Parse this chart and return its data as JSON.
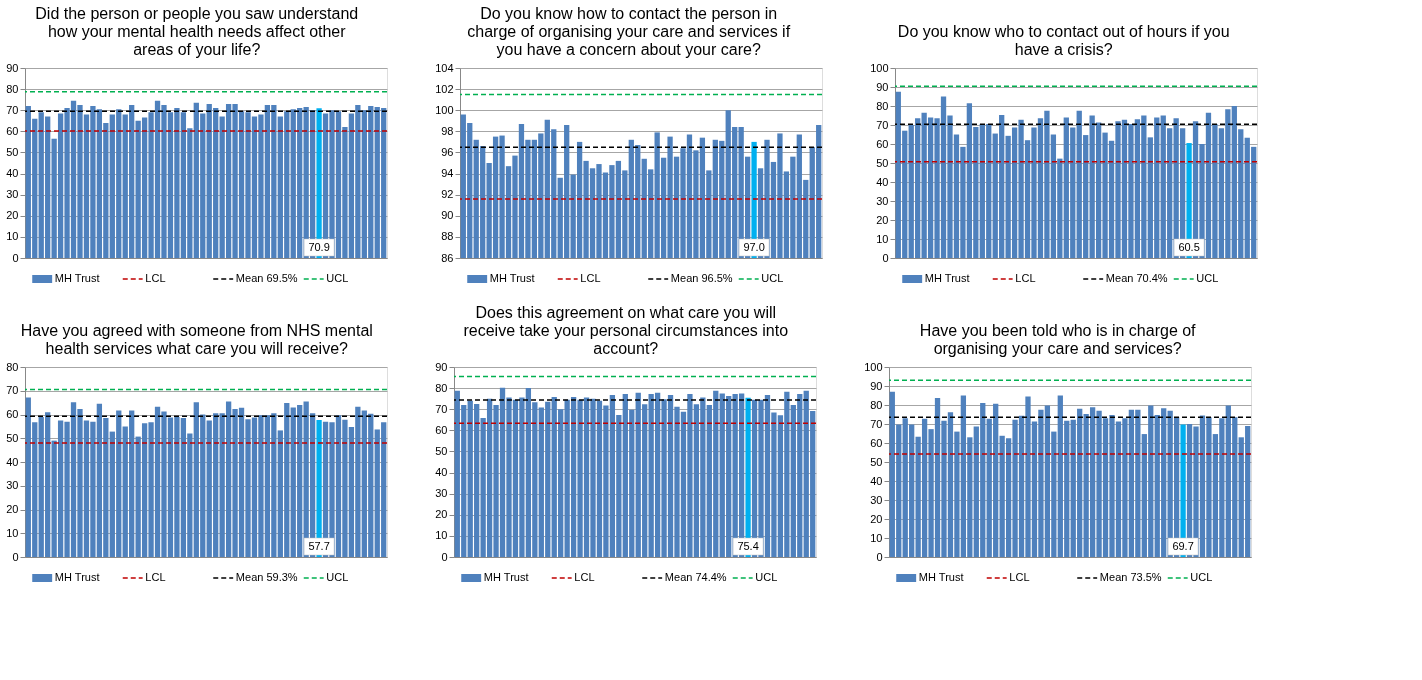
{
  "chart_data": [
    {
      "type": "bar",
      "title": "Did the person or people you saw understand how your mental health needs affect other areas of your life?",
      "categories": [
        null,
        null,
        null,
        null,
        null,
        null,
        null,
        null,
        null,
        null,
        null,
        null,
        null,
        null,
        null,
        null,
        null,
        null,
        null,
        null,
        null,
        null,
        null,
        null,
        null,
        null,
        null,
        null,
        null,
        null,
        null,
        null,
        null,
        null,
        null,
        null,
        null,
        null,
        null,
        null,
        null,
        null,
        null,
        null,
        null,
        null,
        null,
        null,
        null,
        null,
        null,
        null,
        null,
        null,
        null,
        null
      ],
      "tick_labels": "y",
      "ylim": [
        0,
        90
      ],
      "yticks": [
        0,
        10,
        20,
        30,
        40,
        50,
        60,
        70,
        80,
        90
      ],
      "grid": "y",
      "legend": "bottom",
      "series": [
        {
          "name": "MH Trust",
          "color": "#4f81bd",
          "values": [
            72,
            66,
            69,
            67,
            56.5,
            68.5,
            71,
            74.5,
            72.5,
            68,
            72,
            70.5,
            64,
            68,
            70.5,
            68,
            72.5,
            65,
            66.5,
            69,
            74.5,
            72.5,
            69,
            71,
            69,
            61.5,
            73.5,
            68.5,
            73,
            71,
            67,
            73,
            73,
            69.5,
            69,
            67,
            68,
            72.5,
            72.5,
            67,
            69.5,
            70.5,
            71,
            71.5,
            70,
            70.9,
            68.5,
            70,
            69.5,
            62,
            68.5,
            72.5,
            70,
            72,
            71.5,
            71
          ],
          "colors": [
            "#4f81bd",
            "#4f81bd",
            "#4f81bd",
            "#4f81bd",
            "#4f81bd",
            "#4f81bd",
            "#4f81bd",
            "#4f81bd",
            "#4f81bd",
            "#4f81bd",
            "#4f81bd",
            "#4f81bd",
            "#4f81bd",
            "#4f81bd",
            "#4f81bd",
            "#4f81bd",
            "#4f81bd",
            "#4f81bd",
            "#4f81bd",
            "#4f81bd",
            "#4f81bd",
            "#4f81bd",
            "#4f81bd",
            "#4f81bd",
            "#4f81bd",
            "#4f81bd",
            "#4f81bd",
            "#4f81bd",
            "#4f81bd",
            "#4f81bd",
            "#4f81bd",
            "#4f81bd",
            "#4f81bd",
            "#4f81bd",
            "#4f81bd",
            "#4f81bd",
            "#4f81bd",
            "#4f81bd",
            "#4f81bd",
            "#4f81bd",
            "#4f81bd",
            "#4f81bd",
            "#4f81bd",
            "#4f81bd",
            "#4f81bd",
            "#00b0f0",
            "#4f81bd",
            "#4f81bd",
            "#4f81bd",
            "#4f81bd",
            "#4f81bd",
            "#4f81bd",
            "#4f81bd",
            "#4f81bd",
            "#4f81bd",
            "#4f81bd"
          ],
          "value_labels": [
            null,
            null,
            null,
            null,
            null,
            null,
            null,
            null,
            null,
            null,
            null,
            null,
            null,
            null,
            null,
            null,
            null,
            null,
            null,
            null,
            null,
            null,
            null,
            null,
            null,
            null,
            null,
            null,
            null,
            null,
            null,
            null,
            null,
            null,
            null,
            null,
            null,
            null,
            null,
            null,
            null,
            null,
            null,
            null,
            null,
            "70.9",
            null,
            null,
            null,
            null,
            null,
            null,
            null,
            null,
            null,
            null
          ]
        }
      ],
      "ref_lines": [
        {
          "axis": "y",
          "value": 60.2,
          "label": "LCL",
          "color": "#c00000",
          "line_style": "dashed"
        },
        {
          "axis": "y",
          "value": 69.5,
          "label": "Mean 69.5%",
          "color": "#000000",
          "line_style": "dashed"
        },
        {
          "axis": "y",
          "value": 78.7,
          "label": "UCL",
          "color": "#00b050",
          "line_style": "dashed"
        }
      ]
    },
    {
      "type": "bar",
      "title": "Do you know how to contact the person in charge of organising your care and services if you have a concern about your care?",
      "categories": [
        null,
        null,
        null,
        null,
        null,
        null,
        null,
        null,
        null,
        null,
        null,
        null,
        null,
        null,
        null,
        null,
        null,
        null,
        null,
        null,
        null,
        null,
        null,
        null,
        null,
        null,
        null,
        null,
        null,
        null,
        null,
        null,
        null,
        null,
        null,
        null,
        null,
        null,
        null,
        null,
        null,
        null,
        null,
        null,
        null,
        null,
        null,
        null,
        null,
        null,
        null,
        null,
        null,
        null,
        null,
        null
      ],
      "tick_labels": "y",
      "ylim": [
        86,
        104
      ],
      "yticks": [
        86,
        88,
        90,
        92,
        94,
        96,
        98,
        100,
        102,
        104
      ],
      "grid": "y",
      "legend": "bottom",
      "series": [
        {
          "name": "MH Trust",
          "color": "#4f81bd",
          "values": [
            99.6,
            98.8,
            97.2,
            96.6,
            95,
            97.5,
            97.6,
            94.7,
            95.7,
            98.7,
            97.2,
            97.2,
            97.8,
            99.1,
            98.2,
            93.6,
            98.6,
            93.9,
            97,
            95.2,
            94.5,
            94.9,
            94.1,
            94.8,
            95.2,
            94.3,
            97.2,
            96.7,
            95.4,
            94.4,
            97.9,
            95.5,
            97.5,
            95.6,
            96.4,
            97.7,
            96.2,
            97.4,
            94.3,
            97.2,
            97.1,
            100,
            98.4,
            98.4,
            95.6,
            97.0,
            94.5,
            97.2,
            95.1,
            97.8,
            94.2,
            95.6,
            97.7,
            93.4,
            96.5,
            98.6
          ],
          "colors": [
            "#4f81bd",
            "#4f81bd",
            "#4f81bd",
            "#4f81bd",
            "#4f81bd",
            "#4f81bd",
            "#4f81bd",
            "#4f81bd",
            "#4f81bd",
            "#4f81bd",
            "#4f81bd",
            "#4f81bd",
            "#4f81bd",
            "#4f81bd",
            "#4f81bd",
            "#4f81bd",
            "#4f81bd",
            "#4f81bd",
            "#4f81bd",
            "#4f81bd",
            "#4f81bd",
            "#4f81bd",
            "#4f81bd",
            "#4f81bd",
            "#4f81bd",
            "#4f81bd",
            "#4f81bd",
            "#4f81bd",
            "#4f81bd",
            "#4f81bd",
            "#4f81bd",
            "#4f81bd",
            "#4f81bd",
            "#4f81bd",
            "#4f81bd",
            "#4f81bd",
            "#4f81bd",
            "#4f81bd",
            "#4f81bd",
            "#4f81bd",
            "#4f81bd",
            "#4f81bd",
            "#4f81bd",
            "#4f81bd",
            "#4f81bd",
            "#00b0f0",
            "#4f81bd",
            "#4f81bd",
            "#4f81bd",
            "#4f81bd",
            "#4f81bd",
            "#4f81bd",
            "#4f81bd",
            "#4f81bd",
            "#4f81bd",
            "#4f81bd"
          ],
          "value_labels": [
            null,
            null,
            null,
            null,
            null,
            null,
            null,
            null,
            null,
            null,
            null,
            null,
            null,
            null,
            null,
            null,
            null,
            null,
            null,
            null,
            null,
            null,
            null,
            null,
            null,
            null,
            null,
            null,
            null,
            null,
            null,
            null,
            null,
            null,
            null,
            null,
            null,
            null,
            null,
            null,
            null,
            null,
            null,
            null,
            null,
            "97.0",
            null,
            null,
            null,
            null,
            null,
            null,
            null,
            null,
            null,
            null
          ]
        }
      ],
      "ref_lines": [
        {
          "axis": "y",
          "value": 91.6,
          "label": "LCL",
          "color": "#c00000",
          "line_style": "dashed"
        },
        {
          "axis": "y",
          "value": 96.5,
          "label": "Mean 96.5%",
          "color": "#000000",
          "line_style": "dashed"
        },
        {
          "axis": "y",
          "value": 101.5,
          "label": "UCL",
          "color": "#00b050",
          "line_style": "dashed"
        }
      ]
    },
    {
      "type": "bar",
      "title": "Do you know who to contact out of hours if you have a crisis?",
      "categories": [
        null,
        null,
        null,
        null,
        null,
        null,
        null,
        null,
        null,
        null,
        null,
        null,
        null,
        null,
        null,
        null,
        null,
        null,
        null,
        null,
        null,
        null,
        null,
        null,
        null,
        null,
        null,
        null,
        null,
        null,
        null,
        null,
        null,
        null,
        null,
        null,
        null,
        null,
        null,
        null,
        null,
        null,
        null,
        null,
        null,
        null,
        null,
        null,
        null,
        null,
        null,
        null,
        null,
        null,
        null,
        null
      ],
      "tick_labels": "y",
      "ylim": [
        0,
        100
      ],
      "yticks": [
        0,
        10,
        20,
        30,
        40,
        50,
        60,
        70,
        80,
        90,
        100
      ],
      "grid": "y",
      "legend": "bottom",
      "series": [
        {
          "name": "MH Trust",
          "color": "#4f81bd",
          "values": [
            87.5,
            67,
            70,
            73.5,
            76.5,
            74,
            73.5,
            85,
            75,
            65,
            58.5,
            81.5,
            69,
            70.5,
            70.5,
            65.5,
            75.3,
            64.3,
            68.7,
            72.7,
            62,
            68.7,
            73.5,
            77.5,
            65,
            52.3,
            74,
            68.7,
            77.5,
            64.7,
            75,
            71.3,
            66,
            61.7,
            72,
            72.7,
            70.5,
            73,
            75,
            63.5,
            74,
            75,
            68.3,
            73.5,
            68.3,
            60.5,
            72,
            60,
            76.5,
            70.5,
            68.3,
            78.3,
            80,
            67.7,
            63.3,
            58.5
          ],
          "colors": [
            "#4f81bd",
            "#4f81bd",
            "#4f81bd",
            "#4f81bd",
            "#4f81bd",
            "#4f81bd",
            "#4f81bd",
            "#4f81bd",
            "#4f81bd",
            "#4f81bd",
            "#4f81bd",
            "#4f81bd",
            "#4f81bd",
            "#4f81bd",
            "#4f81bd",
            "#4f81bd",
            "#4f81bd",
            "#4f81bd",
            "#4f81bd",
            "#4f81bd",
            "#4f81bd",
            "#4f81bd",
            "#4f81bd",
            "#4f81bd",
            "#4f81bd",
            "#4f81bd",
            "#4f81bd",
            "#4f81bd",
            "#4f81bd",
            "#4f81bd",
            "#4f81bd",
            "#4f81bd",
            "#4f81bd",
            "#4f81bd",
            "#4f81bd",
            "#4f81bd",
            "#4f81bd",
            "#4f81bd",
            "#4f81bd",
            "#4f81bd",
            "#4f81bd",
            "#4f81bd",
            "#4f81bd",
            "#4f81bd",
            "#4f81bd",
            "#00b0f0",
            "#4f81bd",
            "#4f81bd",
            "#4f81bd",
            "#4f81bd",
            "#4f81bd",
            "#4f81bd",
            "#4f81bd",
            "#4f81bd",
            "#4f81bd",
            "#4f81bd"
          ],
          "value_labels": [
            null,
            null,
            null,
            null,
            null,
            null,
            null,
            null,
            null,
            null,
            null,
            null,
            null,
            null,
            null,
            null,
            null,
            null,
            null,
            null,
            null,
            null,
            null,
            null,
            null,
            null,
            null,
            null,
            null,
            null,
            null,
            null,
            null,
            null,
            null,
            null,
            null,
            null,
            null,
            null,
            null,
            null,
            null,
            null,
            null,
            "60.5",
            null,
            null,
            null,
            null,
            null,
            null,
            null,
            null,
            null,
            null
          ]
        }
      ],
      "ref_lines": [
        {
          "axis": "y",
          "value": 50.6,
          "label": "LCL",
          "color": "#c00000",
          "line_style": "dashed"
        },
        {
          "axis": "y",
          "value": 70.4,
          "label": "Mean 70.4%",
          "color": "#000000",
          "line_style": "dashed"
        },
        {
          "axis": "y",
          "value": 90.4,
          "label": "UCL",
          "color": "#00b050",
          "line_style": "dashed"
        }
      ]
    },
    {
      "type": "bar",
      "title": "Have you agreed with someone from NHS mental health services what care you will receive?",
      "categories": [
        null,
        null,
        null,
        null,
        null,
        null,
        null,
        null,
        null,
        null,
        null,
        null,
        null,
        null,
        null,
        null,
        null,
        null,
        null,
        null,
        null,
        null,
        null,
        null,
        null,
        null,
        null,
        null,
        null,
        null,
        null,
        null,
        null,
        null,
        null,
        null,
        null,
        null,
        null,
        null,
        null,
        null,
        null,
        null,
        null,
        null,
        null,
        null,
        null,
        null,
        null,
        null,
        null,
        null,
        null,
        null
      ],
      "tick_labels": "y",
      "ylim": [
        0,
        80
      ],
      "yticks": [
        0,
        10,
        20,
        30,
        40,
        50,
        60,
        70,
        80
      ],
      "grid": "y",
      "legend": "bottom",
      "series": [
        {
          "name": "MH Trust",
          "color": "#4f81bd",
          "values": [
            67.2,
            56.7,
            59,
            61,
            49,
            57.5,
            57,
            65.2,
            62.3,
            57.5,
            57,
            64.5,
            58.5,
            52.8,
            61.7,
            55,
            61.7,
            50.7,
            56.3,
            56.7,
            63.3,
            61.3,
            58.7,
            59,
            58.5,
            52,
            65.2,
            60,
            57.5,
            60.5,
            60.5,
            65.5,
            62.3,
            62.8,
            58,
            58.7,
            59.7,
            59.7,
            60.5,
            53.3,
            64.8,
            63,
            64,
            65.5,
            60.5,
            57.7,
            57,
            56.7,
            59.7,
            57.8,
            54.7,
            63.3,
            61.7,
            60.3,
            53.7,
            56.7
          ],
          "colors": [
            "#4f81bd",
            "#4f81bd",
            "#4f81bd",
            "#4f81bd",
            "#4f81bd",
            "#4f81bd",
            "#4f81bd",
            "#4f81bd",
            "#4f81bd",
            "#4f81bd",
            "#4f81bd",
            "#4f81bd",
            "#4f81bd",
            "#4f81bd",
            "#4f81bd",
            "#4f81bd",
            "#4f81bd",
            "#4f81bd",
            "#4f81bd",
            "#4f81bd",
            "#4f81bd",
            "#4f81bd",
            "#4f81bd",
            "#4f81bd",
            "#4f81bd",
            "#4f81bd",
            "#4f81bd",
            "#4f81bd",
            "#4f81bd",
            "#4f81bd",
            "#4f81bd",
            "#4f81bd",
            "#4f81bd",
            "#4f81bd",
            "#4f81bd",
            "#4f81bd",
            "#4f81bd",
            "#4f81bd",
            "#4f81bd",
            "#4f81bd",
            "#4f81bd",
            "#4f81bd",
            "#4f81bd",
            "#4f81bd",
            "#4f81bd",
            "#00b0f0",
            "#4f81bd",
            "#4f81bd",
            "#4f81bd",
            "#4f81bd",
            "#4f81bd",
            "#4f81bd",
            "#4f81bd",
            "#4f81bd",
            "#4f81bd",
            "#4f81bd"
          ],
          "value_labels": [
            null,
            null,
            null,
            null,
            null,
            null,
            null,
            null,
            null,
            null,
            null,
            null,
            null,
            null,
            null,
            null,
            null,
            null,
            null,
            null,
            null,
            null,
            null,
            null,
            null,
            null,
            null,
            null,
            null,
            null,
            null,
            null,
            null,
            null,
            null,
            null,
            null,
            null,
            null,
            null,
            null,
            null,
            null,
            null,
            null,
            "57.7",
            null,
            null,
            null,
            null,
            null,
            null,
            null,
            null,
            null,
            null
          ]
        }
      ],
      "ref_lines": [
        {
          "axis": "y",
          "value": 48,
          "label": "LCL",
          "color": "#c00000",
          "line_style": "dashed"
        },
        {
          "axis": "y",
          "value": 59.3,
          "label": "Mean 59.3%",
          "color": "#000000",
          "line_style": "dashed"
        },
        {
          "axis": "y",
          "value": 70.5,
          "label": "UCL",
          "color": "#00b050",
          "line_style": "dashed"
        }
      ]
    },
    {
      "type": "bar",
      "title": "Does this agreement on what care you will receive take your personal circumstances into account?",
      "categories": [
        null,
        null,
        null,
        null,
        null,
        null,
        null,
        null,
        null,
        null,
        null,
        null,
        null,
        null,
        null,
        null,
        null,
        null,
        null,
        null,
        null,
        null,
        null,
        null,
        null,
        null,
        null,
        null,
        null,
        null,
        null,
        null,
        null,
        null,
        null,
        null,
        null,
        null,
        null,
        null,
        null,
        null,
        null,
        null,
        null,
        null,
        null,
        null,
        null,
        null,
        null,
        null,
        null,
        null,
        null,
        null
      ],
      "tick_labels": "y",
      "ylim": [
        0,
        90
      ],
      "yticks": [
        0,
        10,
        20,
        30,
        40,
        50,
        60,
        70,
        80,
        90
      ],
      "grid": "y",
      "legend": "bottom",
      "series": [
        {
          "name": "MH Trust",
          "color": "#4f81bd",
          "values": [
            78.7,
            72,
            74,
            72.5,
            65.8,
            75,
            72,
            80.2,
            75.5,
            74.5,
            75.5,
            80,
            73.3,
            70.8,
            73.5,
            75.8,
            70,
            74.5,
            75.8,
            74.5,
            75.5,
            75,
            74,
            71.8,
            76.7,
            67.3,
            77.2,
            69.8,
            77.8,
            72.3,
            77.2,
            77.8,
            74.7,
            76.7,
            71.2,
            68.8,
            77.2,
            72.3,
            75.5,
            72,
            78.7,
            77.5,
            76.3,
            77.2,
            77.5,
            75.4,
            74.5,
            74.5,
            76.7,
            68.5,
            67.2,
            78.3,
            72,
            77.2,
            78.7,
            69.2
          ],
          "colors": [
            "#4f81bd",
            "#4f81bd",
            "#4f81bd",
            "#4f81bd",
            "#4f81bd",
            "#4f81bd",
            "#4f81bd",
            "#4f81bd",
            "#4f81bd",
            "#4f81bd",
            "#4f81bd",
            "#4f81bd",
            "#4f81bd",
            "#4f81bd",
            "#4f81bd",
            "#4f81bd",
            "#4f81bd",
            "#4f81bd",
            "#4f81bd",
            "#4f81bd",
            "#4f81bd",
            "#4f81bd",
            "#4f81bd",
            "#4f81bd",
            "#4f81bd",
            "#4f81bd",
            "#4f81bd",
            "#4f81bd",
            "#4f81bd",
            "#4f81bd",
            "#4f81bd",
            "#4f81bd",
            "#4f81bd",
            "#4f81bd",
            "#4f81bd",
            "#4f81bd",
            "#4f81bd",
            "#4f81bd",
            "#4f81bd",
            "#4f81bd",
            "#4f81bd",
            "#4f81bd",
            "#4f81bd",
            "#4f81bd",
            "#4f81bd",
            "#00b0f0",
            "#4f81bd",
            "#4f81bd",
            "#4f81bd",
            "#4f81bd",
            "#4f81bd",
            "#4f81bd",
            "#4f81bd",
            "#4f81bd",
            "#4f81bd",
            "#4f81bd"
          ],
          "value_labels": [
            null,
            null,
            null,
            null,
            null,
            null,
            null,
            null,
            null,
            null,
            null,
            null,
            null,
            null,
            null,
            null,
            null,
            null,
            null,
            null,
            null,
            null,
            null,
            null,
            null,
            null,
            null,
            null,
            null,
            null,
            null,
            null,
            null,
            null,
            null,
            null,
            null,
            null,
            null,
            null,
            null,
            null,
            null,
            null,
            null,
            "75.4",
            null,
            null,
            null,
            null,
            null,
            null,
            null,
            null,
            null,
            null
          ]
        }
      ],
      "ref_lines": [
        {
          "axis": "y",
          "value": 63.3,
          "label": "LCL",
          "color": "#c00000",
          "line_style": "dashed"
        },
        {
          "axis": "y",
          "value": 74.4,
          "label": "Mean 74.4%",
          "color": "#000000",
          "line_style": "dashed"
        },
        {
          "axis": "y",
          "value": 85.5,
          "label": "UCL",
          "color": "#00b050",
          "line_style": "dashed"
        }
      ]
    },
    {
      "type": "bar",
      "title": "Have you been told who is in charge of organising your care and services?",
      "categories": [
        null,
        null,
        null,
        null,
        null,
        null,
        null,
        null,
        null,
        null,
        null,
        null,
        null,
        null,
        null,
        null,
        null,
        null,
        null,
        null,
        null,
        null,
        null,
        null,
        null,
        null,
        null,
        null,
        null,
        null,
        null,
        null,
        null,
        null,
        null,
        null,
        null,
        null,
        null,
        null,
        null,
        null,
        null,
        null,
        null,
        null,
        null,
        null,
        null,
        null,
        null,
        null,
        null,
        null,
        null,
        null
      ],
      "tick_labels": "y",
      "ylim": [
        0,
        100
      ],
      "yticks": [
        0,
        10,
        20,
        30,
        40,
        50,
        60,
        70,
        80,
        90,
        100
      ],
      "grid": "y",
      "legend": "bottom",
      "series": [
        {
          "name": "MH Trust",
          "color": "#4f81bd",
          "values": [
            87,
            69.7,
            73,
            69.7,
            63.3,
            72.7,
            67.3,
            83.7,
            71.7,
            76.2,
            66,
            85,
            63,
            68.7,
            81,
            72.7,
            80.7,
            63.8,
            62.5,
            72.3,
            74.3,
            84.5,
            71.3,
            77.5,
            79.7,
            66,
            85,
            71.7,
            72.3,
            78,
            75.3,
            78.8,
            77,
            73,
            74.7,
            71.3,
            73,
            77.5,
            77.5,
            64.7,
            79.7,
            74.8,
            78.3,
            77,
            73.5,
            69.7,
            70,
            68.7,
            74.5,
            73.5,
            64.7,
            73,
            79.8,
            73.5,
            63,
            69
          ],
          "colors": [
            "#4f81bd",
            "#4f81bd",
            "#4f81bd",
            "#4f81bd",
            "#4f81bd",
            "#4f81bd",
            "#4f81bd",
            "#4f81bd",
            "#4f81bd",
            "#4f81bd",
            "#4f81bd",
            "#4f81bd",
            "#4f81bd",
            "#4f81bd",
            "#4f81bd",
            "#4f81bd",
            "#4f81bd",
            "#4f81bd",
            "#4f81bd",
            "#4f81bd",
            "#4f81bd",
            "#4f81bd",
            "#4f81bd",
            "#4f81bd",
            "#4f81bd",
            "#4f81bd",
            "#4f81bd",
            "#4f81bd",
            "#4f81bd",
            "#4f81bd",
            "#4f81bd",
            "#4f81bd",
            "#4f81bd",
            "#4f81bd",
            "#4f81bd",
            "#4f81bd",
            "#4f81bd",
            "#4f81bd",
            "#4f81bd",
            "#4f81bd",
            "#4f81bd",
            "#4f81bd",
            "#4f81bd",
            "#4f81bd",
            "#4f81bd",
            "#00b0f0",
            "#4f81bd",
            "#4f81bd",
            "#4f81bd",
            "#4f81bd",
            "#4f81bd",
            "#4f81bd",
            "#4f81bd",
            "#4f81bd",
            "#4f81bd",
            "#4f81bd"
          ],
          "value_labels": [
            null,
            null,
            null,
            null,
            null,
            null,
            null,
            null,
            null,
            null,
            null,
            null,
            null,
            null,
            null,
            null,
            null,
            null,
            null,
            null,
            null,
            null,
            null,
            null,
            null,
            null,
            null,
            null,
            null,
            null,
            null,
            null,
            null,
            null,
            null,
            null,
            null,
            null,
            null,
            null,
            null,
            null,
            null,
            null,
            null,
            "69.7",
            null,
            null,
            null,
            null,
            null,
            null,
            null,
            null,
            null,
            null
          ]
        }
      ],
      "ref_lines": [
        {
          "axis": "y",
          "value": 54.2,
          "label": "LCL",
          "color": "#c00000",
          "line_style": "dashed"
        },
        {
          "axis": "y",
          "value": 73.5,
          "label": "Mean 73.5%",
          "color": "#000000",
          "line_style": "dashed"
        },
        {
          "axis": "y",
          "value": 93,
          "label": "UCL",
          "color": "#00b050",
          "line_style": "dashed"
        }
      ]
    }
  ]
}
